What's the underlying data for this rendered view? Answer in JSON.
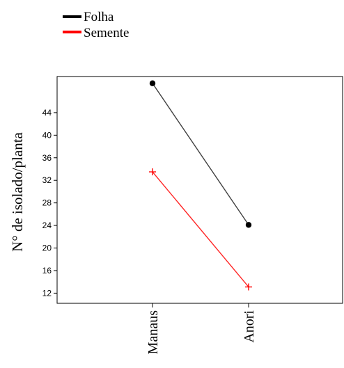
{
  "chart_data": {
    "type": "line",
    "categories": [
      "Manaus",
      "Anori"
    ],
    "series": [
      {
        "name": "Folha",
        "values": [
          49.2,
          24.1
        ],
        "color": "#000000",
        "marker": "circle"
      },
      {
        "name": "Semente",
        "values": [
          33.5,
          13.1
        ],
        "color": "#ff0000",
        "marker": "plus"
      }
    ],
    "title": "",
    "xlabel": "",
    "ylabel": "N° de isolado/planta",
    "yticks": [
      12,
      16,
      20,
      24,
      28,
      32,
      36,
      40,
      44
    ],
    "ylim": [
      10.2,
      50.4
    ],
    "legend_position": "top-left",
    "grid": false
  }
}
